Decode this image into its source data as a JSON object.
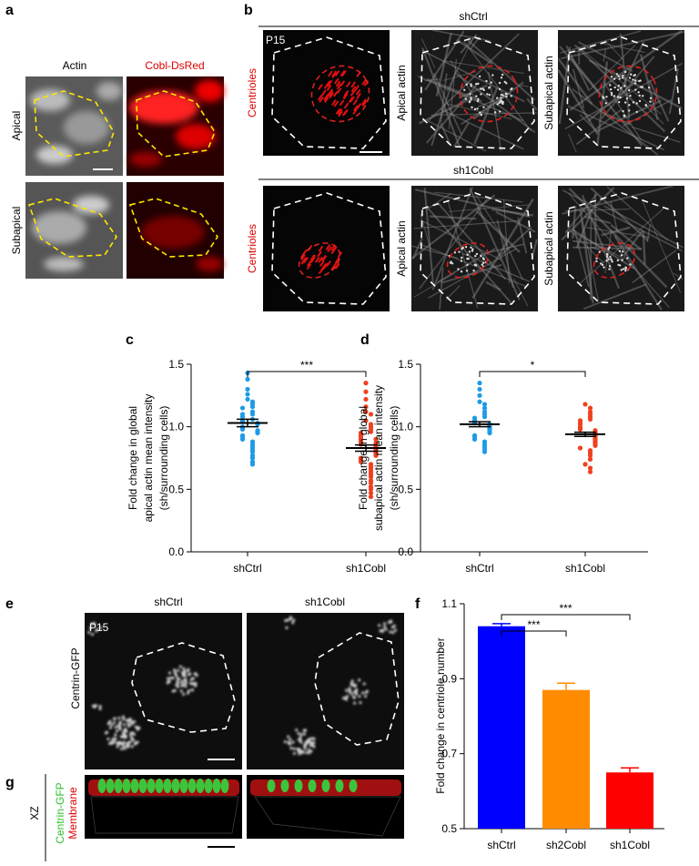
{
  "panel_labels": [
    "a",
    "b",
    "c",
    "d",
    "e",
    "f",
    "g"
  ],
  "panel_a": {
    "columns": [
      "Actin",
      "Cobl-DsRed"
    ],
    "rows": [
      "Apical",
      "Subapical"
    ]
  },
  "panel_b": {
    "groups": [
      "shCtrl",
      "sh1Cobl"
    ],
    "overlay": "P15",
    "column_labels": [
      "Centrioles",
      "Apical actin",
      "Subapical actin"
    ]
  },
  "panel_e": {
    "columns": [
      "shCtrl",
      "sh1Cobl"
    ],
    "overlay": "P15",
    "row_label": "Centrin-GFP"
  },
  "panel_g": {
    "row_label": "XZ",
    "legend": [
      "Centrin-GFP",
      "Membrane"
    ]
  },
  "chart_data": [
    {
      "type": "dot_plot",
      "y_label": [
        "Fold change in global",
        "apical actin mean intensity",
        "(sh/surrounding cells)"
      ],
      "categories": [
        "shCtrl",
        "sh1Cobl"
      ],
      "groups": [
        {
          "color": "#1e9be6",
          "mean": 1.03,
          "sem": 0.03,
          "values": [
            1.43,
            1.38,
            1.3,
            1.26,
            1.22,
            1.2,
            1.18,
            1.16,
            1.15,
            1.12,
            1.1,
            1.1,
            1.08,
            1.06,
            1.05,
            1.04,
            1.03,
            1.02,
            1.0,
            0.99,
            0.98,
            0.97,
            0.96,
            0.95,
            0.93,
            0.92,
            0.9,
            0.88,
            0.86,
            0.84,
            0.82,
            0.8,
            0.77,
            0.75,
            0.72,
            0.7
          ]
        },
        {
          "color": "#f0401e",
          "mean": 0.83,
          "sem": 0.025,
          "values": [
            1.35,
            1.28,
            1.22,
            1.16,
            1.12,
            1.1,
            1.05,
            1.02,
            1.0,
            0.98,
            0.96,
            0.95,
            0.93,
            0.92,
            0.9,
            0.9,
            0.88,
            0.87,
            0.86,
            0.85,
            0.84,
            0.83,
            0.82,
            0.81,
            0.8,
            0.79,
            0.78,
            0.77,
            0.75,
            0.74,
            0.72,
            0.7,
            0.68,
            0.66,
            0.64,
            0.62,
            0.6,
            0.57,
            0.55,
            0.52,
            0.5,
            0.47,
            0.44
          ]
        }
      ],
      "ylim": [
        0,
        1.5
      ],
      "yticks": [
        {
          "value": 0,
          "label": "0.0"
        },
        0.5,
        {
          "value": 1,
          "label": "1.0"
        },
        1.5
      ],
      "annotations": [
        {
          "text": "***",
          "between": [
            "shCtrl",
            "sh1Cobl"
          ]
        }
      ]
    },
    {
      "type": "dot_plot",
      "y_label": [
        "Fold change in global",
        "subapical actin mean intensity",
        "(sh/surrounding cells)"
      ],
      "categories": [
        "shCtrl",
        "sh1Cobl"
      ],
      "groups": [
        {
          "color": "#1e9be6",
          "mean": 1.02,
          "sem": 0.02,
          "values": [
            1.35,
            1.3,
            1.25,
            1.2,
            1.18,
            1.15,
            1.12,
            1.1,
            1.08,
            1.07,
            1.05,
            1.04,
            1.03,
            1.02,
            1.01,
            1.0,
            0.99,
            0.98,
            0.97,
            0.96,
            0.95,
            0.93,
            0.92,
            0.9,
            0.88,
            0.86,
            0.84,
            0.82,
            0.8
          ]
        },
        {
          "color": "#f0401e",
          "mean": 0.94,
          "sem": 0.017,
          "values": [
            1.18,
            1.15,
            1.12,
            1.1,
            1.08,
            1.06,
            1.05,
            1.03,
            1.02,
            1.0,
            0.99,
            0.98,
            0.97,
            0.96,
            0.95,
            0.94,
            0.93,
            0.92,
            0.91,
            0.9,
            0.89,
            0.88,
            0.87,
            0.86,
            0.85,
            0.83,
            0.81,
            0.79,
            0.77,
            0.74,
            0.7,
            0.67,
            0.64
          ]
        }
      ],
      "ylim": [
        0,
        1.5
      ],
      "yticks": [
        {
          "value": 0,
          "label": "0.0"
        },
        0.5,
        {
          "value": 1,
          "label": "1.0"
        },
        1.5
      ],
      "annotations": [
        {
          "text": "*",
          "between": [
            "shCtrl",
            "sh1Cobl"
          ]
        }
      ]
    },
    {
      "type": "bar",
      "y_label": [
        "Fold change in centriole number"
      ],
      "categories": [
        "shCtrl",
        "sh2Cobl",
        "sh1Cobl"
      ],
      "values": [
        1.04,
        0.87,
        0.65
      ],
      "errors": [
        0.007,
        0.018,
        0.012
      ],
      "colors": [
        "#0000ff",
        "#ff8c00",
        "#ff0000"
      ],
      "ylim": [
        0.5,
        1.1
      ],
      "yticks": [
        0.5,
        0.7,
        0.9,
        1.1
      ],
      "annotations": [
        {
          "text": "***",
          "between": [
            "shCtrl",
            "sh2Cobl"
          ]
        },
        {
          "text": "***",
          "between": [
            "shCtrl",
            "sh1Cobl"
          ]
        }
      ]
    }
  ]
}
